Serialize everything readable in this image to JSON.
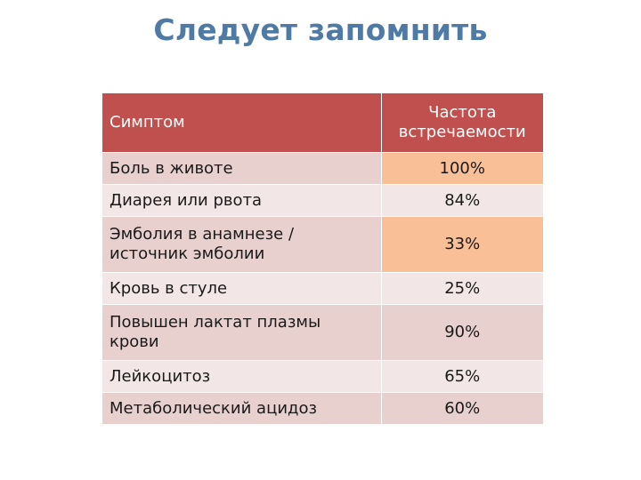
{
  "title": "Следует запомнить",
  "table": {
    "headers": {
      "symptom": "Симптом",
      "frequency": "Частота встречаемости"
    },
    "rows": [
      {
        "symptom": "Боль в животе",
        "frequency": "100%"
      },
      {
        "symptom": "Диарея или рвота",
        "frequency": "84%"
      },
      {
        "symptom": "Эмболия в анамнезе / источник эмболии",
        "frequency": "33%"
      },
      {
        "symptom": "Кровь в стуле",
        "frequency": "25%"
      },
      {
        "symptom": "Повышен лактат плазмы крови",
        "frequency": "90%"
      },
      {
        "symptom": "Лейкоцитоз",
        "frequency": "65%"
      },
      {
        "symptom": "Метаболический ацидоз",
        "frequency": "60%"
      }
    ]
  },
  "colors": {
    "title": "#4f7aa6",
    "header_bg": "#c0504d",
    "row_dark": "#e8d0cf",
    "row_light": "#f2e7e6",
    "highlight": "#f9c097"
  }
}
